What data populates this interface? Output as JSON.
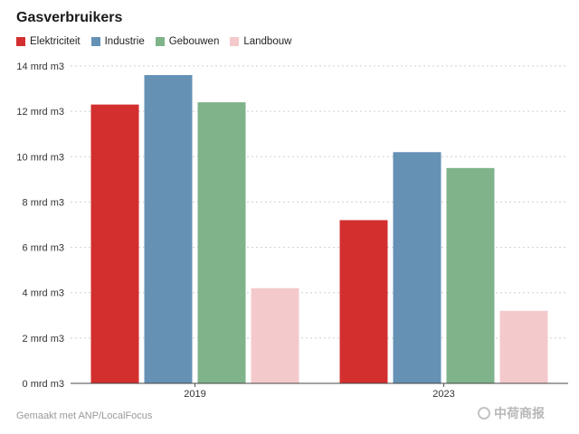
{
  "chart_data": {
    "type": "bar",
    "title": "Gasverbruikers",
    "categories": [
      "2019",
      "2023"
    ],
    "series": [
      {
        "name": "Elektriciteit",
        "color": "#d32f2f",
        "values": [
          12.3,
          7.2
        ]
      },
      {
        "name": "Industrie",
        "color": "#6591b5",
        "values": [
          13.6,
          10.2
        ]
      },
      {
        "name": "Gebouwen",
        "color": "#7fb38a",
        "values": [
          12.4,
          9.5
        ]
      },
      {
        "name": "Landbouw",
        "color": "#f4c9cc",
        "values": [
          4.2,
          3.2
        ]
      }
    ],
    "yticks": [
      "0 mrd m3",
      "2 mrd m3",
      "4 mrd m3",
      "6 mrd m3",
      "8 mrd m3",
      "10 mrd m3",
      "12 mrd m3",
      "14 mrd m3"
    ],
    "ylim": [
      0,
      14
    ],
    "grid": true,
    "legend_position": "top-left"
  },
  "footer": "Gemaakt met ANP/LocalFocus",
  "watermark": "中荷商报"
}
